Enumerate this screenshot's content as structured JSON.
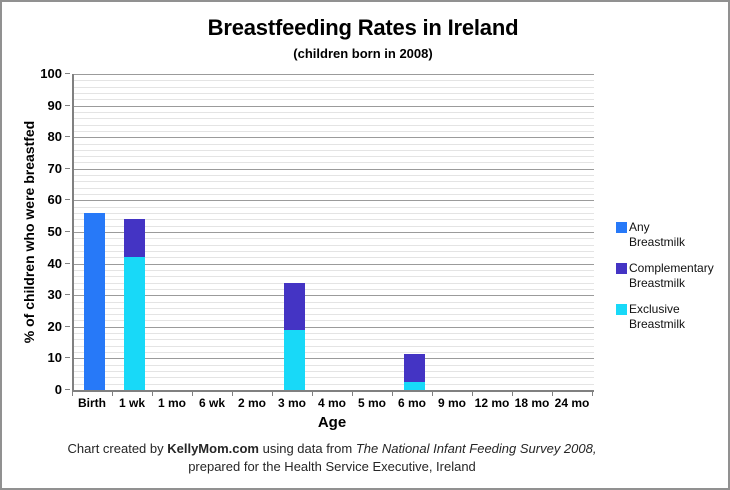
{
  "window": {
    "background": "#ffffff",
    "border_color": "#919191"
  },
  "title": "Breastfeeding Rates in Ireland",
  "subtitle": "(children born in 2008)",
  "footer": {
    "line1_parts": [
      {
        "text": "Chart created by ",
        "style": "normal"
      },
      {
        "text": "KellyMom.com",
        "style": "bold"
      },
      {
        "text": " using data from ",
        "style": "normal"
      },
      {
        "text": "The National Infant Feeding Survey 2008,",
        "style": "italic"
      }
    ],
    "line2": "prepared for the Health Service Executive, Ireland"
  },
  "legend": {
    "items": [
      {
        "lines": [
          "Any",
          "Breastmilk"
        ],
        "color": "#2779F8"
      },
      {
        "lines": [
          "Complementary",
          "Breastmilk"
        ],
        "color": "#4434C4"
      },
      {
        "lines": [
          "Exclusive",
          "Breastmilk"
        ],
        "color": "#18D9F8"
      }
    ]
  },
  "colors": {
    "axis": "#808080",
    "grid_major": "#9b9b9b",
    "grid_minor": "#e4e4e4",
    "any_breastmilk": "#2779F8",
    "complementary_breastmilk": "#4434C4",
    "exclusive_breastmilk": "#18D9F8"
  },
  "chart_data": {
    "type": "bar",
    "stacked": true,
    "title": "Breastfeeding Rates in Ireland",
    "subtitle": "(children born in 2008)",
    "xlabel": "Age",
    "ylabel": "% of children who were breastfed",
    "categories": [
      "Birth",
      "1 wk",
      "1 mo",
      "6 wk",
      "2 mo",
      "3 mo",
      "4 mo",
      "5 mo",
      "6 mo",
      "9 mo",
      "12 mo",
      "18 mo",
      "24 mo"
    ],
    "series": [
      {
        "name": "Any Breastmilk",
        "color": "#2779F8",
        "values": [
          56,
          0,
          0,
          0,
          0,
          0,
          0,
          0,
          0,
          0,
          0,
          0,
          0
        ]
      },
      {
        "name": "Exclusive Breastmilk",
        "color": "#18D9F8",
        "values": [
          0,
          42,
          0,
          0,
          0,
          19,
          0,
          0,
          2.5,
          0,
          0,
          0,
          0
        ]
      },
      {
        "name": "Complementary Breastmilk",
        "color": "#4434C4",
        "values": [
          0,
          12,
          0,
          0,
          0,
          15,
          0,
          0,
          9,
          0,
          0,
          0,
          0
        ]
      }
    ],
    "ylim": [
      0,
      100
    ],
    "y_major_step": 10,
    "y_minor_step": 2,
    "grid": true,
    "legend_position": "right"
  }
}
